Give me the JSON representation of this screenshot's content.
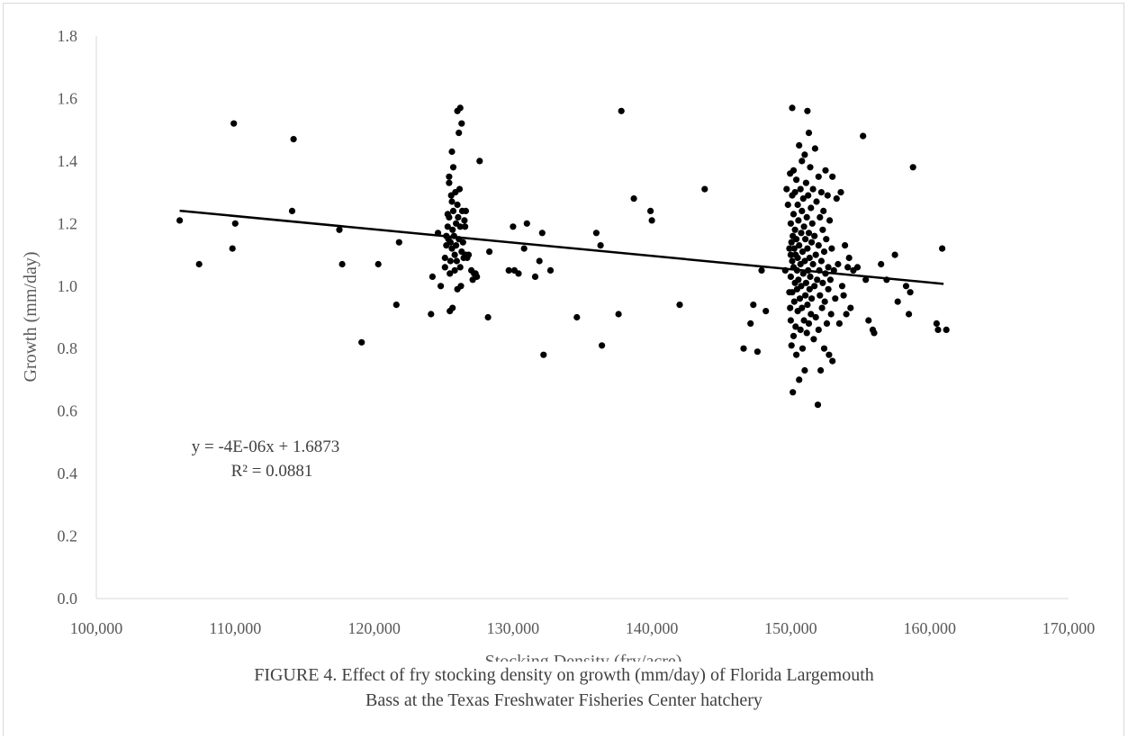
{
  "chart_data": {
    "type": "scatter",
    "xlabel": "Stocking Density (fry/acre)",
    "ylabel": "Growth (mm/day)",
    "xlim": [
      100000,
      170000
    ],
    "ylim": [
      0.0,
      1.8
    ],
    "x_ticks": [
      "100,000",
      "110,000",
      "120,000",
      "130,000",
      "140,000",
      "150,000",
      "160,000",
      "170,000"
    ],
    "y_ticks": [
      "0.0",
      "0.2",
      "0.4",
      "0.6",
      "0.8",
      "1.0",
      "1.2",
      "1.4",
      "1.6",
      "1.8"
    ],
    "grid": false,
    "point_color": "#000000",
    "trendline": {
      "equation": "y = -4E-06x + 1.6873",
      "r_squared": "R² = 0.0881",
      "x_range": [
        106000,
        161000
      ],
      "y_range": [
        1.241,
        1.007
      ]
    },
    "points": [
      [
        106000,
        1.21
      ],
      [
        107400,
        1.07
      ],
      [
        109800,
        1.12
      ],
      [
        109900,
        1.52
      ],
      [
        110000,
        1.2
      ],
      [
        114100,
        1.24
      ],
      [
        114200,
        1.47
      ],
      [
        117500,
        1.18
      ],
      [
        117700,
        1.07
      ],
      [
        119100,
        0.82
      ],
      [
        120300,
        1.07
      ],
      [
        121600,
        0.94
      ],
      [
        121800,
        1.14
      ],
      [
        124100,
        0.91
      ],
      [
        124200,
        1.03
      ],
      [
        124600,
        1.17
      ],
      [
        124800,
        1.0
      ],
      [
        125100,
        1.06
      ],
      [
        125100,
        1.09
      ],
      [
        125200,
        1.13
      ],
      [
        125200,
        1.16
      ],
      [
        125300,
        1.23
      ],
      [
        125300,
        1.19
      ],
      [
        125350,
        1.15
      ],
      [
        125400,
        1.35
      ],
      [
        125400,
        1.33
      ],
      [
        125400,
        1.22
      ],
      [
        125450,
        1.04
      ],
      [
        125450,
        0.92
      ],
      [
        125500,
        1.14
      ],
      [
        125500,
        1.08
      ],
      [
        125550,
        1.29
      ],
      [
        125600,
        1.43
      ],
      [
        125600,
        1.27
      ],
      [
        125600,
        1.12
      ],
      [
        125650,
        1.18
      ],
      [
        125650,
        0.93
      ],
      [
        125700,
        1.38
      ],
      [
        125700,
        1.24
      ],
      [
        125750,
        1.16
      ],
      [
        125800,
        1.1
      ],
      [
        125800,
        1.05
      ],
      [
        125850,
        1.3
      ],
      [
        125900,
        1.2
      ],
      [
        125900,
        1.13
      ],
      [
        125950,
        1.08
      ],
      [
        126000,
        1.56
      ],
      [
        126000,
        1.26
      ],
      [
        126000,
        0.99
      ],
      [
        126050,
        1.22
      ],
      [
        126100,
        1.15
      ],
      [
        126100,
        1.49
      ],
      [
        126150,
        1.31
      ],
      [
        126200,
        1.57
      ],
      [
        126200,
        1.19
      ],
      [
        126200,
        1.06
      ],
      [
        126250,
        1.0
      ],
      [
        126300,
        1.52
      ],
      [
        126300,
        1.11
      ],
      [
        126350,
        1.24
      ],
      [
        126400,
        1.14
      ],
      [
        126450,
        1.09
      ],
      [
        126500,
        1.21
      ],
      [
        126550,
        1.19
      ],
      [
        126600,
        1.24
      ],
      [
        126600,
        1.1
      ],
      [
        126700,
        1.09
      ],
      [
        126800,
        1.1
      ],
      [
        127000,
        1.05
      ],
      [
        127100,
        1.02
      ],
      [
        127200,
        1.04
      ],
      [
        127300,
        1.04
      ],
      [
        127400,
        1.03
      ],
      [
        127600,
        1.4
      ],
      [
        128200,
        0.9
      ],
      [
        128300,
        1.11
      ],
      [
        129700,
        1.05
      ],
      [
        130000,
        1.19
      ],
      [
        130100,
        1.05
      ],
      [
        130400,
        1.04
      ],
      [
        130800,
        1.12
      ],
      [
        131000,
        1.2
      ],
      [
        131600,
        1.03
      ],
      [
        131900,
        1.08
      ],
      [
        132100,
        1.17
      ],
      [
        132200,
        0.78
      ],
      [
        132700,
        1.05
      ],
      [
        134600,
        0.9
      ],
      [
        136000,
        1.17
      ],
      [
        136300,
        1.13
      ],
      [
        136400,
        0.81
      ],
      [
        137600,
        0.91
      ],
      [
        137800,
        1.56
      ],
      [
        138700,
        1.28
      ],
      [
        139900,
        1.24
      ],
      [
        140000,
        1.21
      ],
      [
        142000,
        0.94
      ],
      [
        143800,
        1.31
      ],
      [
        146600,
        0.8
      ],
      [
        147100,
        0.88
      ],
      [
        147300,
        0.94
      ],
      [
        147600,
        0.79
      ],
      [
        147900,
        1.05
      ],
      [
        148200,
        0.92
      ],
      [
        149600,
        1.05
      ],
      [
        149700,
        1.31
      ],
      [
        149800,
        1.26
      ],
      [
        149900,
        1.12
      ],
      [
        149900,
        0.98
      ],
      [
        149950,
        1.36
      ],
      [
        149950,
        0.93
      ],
      [
        150000,
        1.2
      ],
      [
        150000,
        1.1
      ],
      [
        150000,
        1.03
      ],
      [
        150000,
        0.89
      ],
      [
        150050,
        1.14
      ],
      [
        150050,
        0.81
      ],
      [
        150100,
        1.57
      ],
      [
        150100,
        1.29
      ],
      [
        150100,
        1.08
      ],
      [
        150100,
        0.98
      ],
      [
        150150,
        1.16
      ],
      [
        150150,
        0.66
      ],
      [
        150200,
        1.37
      ],
      [
        150200,
        1.23
      ],
      [
        150200,
        1.06
      ],
      [
        150200,
        0.84
      ],
      [
        150250,
        1.12
      ],
      [
        150250,
        0.95
      ],
      [
        150300,
        1.3
      ],
      [
        150300,
        1.18
      ],
      [
        150300,
        1.01
      ],
      [
        150350,
        1.1
      ],
      [
        150350,
        0.87
      ],
      [
        150400,
        1.34
      ],
      [
        150400,
        1.15
      ],
      [
        150400,
        0.78
      ],
      [
        150450,
        1.05
      ],
      [
        150450,
        0.99
      ],
      [
        150500,
        1.26
      ],
      [
        150500,
        1.09
      ],
      [
        150500,
        0.92
      ],
      [
        150550,
        1.21
      ],
      [
        150550,
        1.02
      ],
      [
        150600,
        1.45
      ],
      [
        150600,
        1.13
      ],
      [
        150600,
        0.7
      ],
      [
        150650,
        0.96
      ],
      [
        150700,
        1.31
      ],
      [
        150700,
        1.07
      ],
      [
        150700,
        0.86
      ],
      [
        150750,
        1.17
      ],
      [
        150750,
        1.0
      ],
      [
        150800,
        1.4
      ],
      [
        150800,
        1.24
      ],
      [
        150800,
        0.93
      ],
      [
        150850,
        1.11
      ],
      [
        150850,
        0.8
      ],
      [
        150900,
        1.28
      ],
      [
        150900,
        1.04
      ],
      [
        150950,
        1.19
      ],
      [
        150950,
        0.89
      ],
      [
        151000,
        1.42
      ],
      [
        151000,
        1.08
      ],
      [
        151000,
        0.73
      ],
      [
        151050,
        1.15
      ],
      [
        151050,
        0.97
      ],
      [
        151100,
        1.33
      ],
      [
        151100,
        1.01
      ],
      [
        151150,
        1.22
      ],
      [
        151150,
        0.85
      ],
      [
        151200,
        1.56
      ],
      [
        151200,
        1.12
      ],
      [
        151200,
        0.94
      ],
      [
        151250,
        1.29
      ],
      [
        151250,
        1.05
      ],
      [
        151300,
        1.49
      ],
      [
        151300,
        1.17
      ],
      [
        151300,
        0.88
      ],
      [
        151350,
        1.09
      ],
      [
        151350,
        0.99
      ],
      [
        151400,
        1.38
      ],
      [
        151400,
        1.03
      ],
      [
        151450,
        1.25
      ],
      [
        151450,
        0.91
      ],
      [
        151500,
        1.14
      ],
      [
        151500,
        0.96
      ],
      [
        151550,
        1.2
      ],
      [
        151600,
        1.31
      ],
      [
        151600,
        1.07
      ],
      [
        151650,
        0.83
      ],
      [
        151700,
        1.16
      ],
      [
        151700,
        1.0
      ],
      [
        151750,
        1.44
      ],
      [
        151800,
        1.1
      ],
      [
        151800,
        0.9
      ],
      [
        151850,
        1.27
      ],
      [
        151900,
        1.02
      ],
      [
        151950,
        0.62
      ],
      [
        152000,
        1.35
      ],
      [
        152000,
        1.13
      ],
      [
        152000,
        0.86
      ],
      [
        152050,
        1.05
      ],
      [
        152100,
        1.22
      ],
      [
        152100,
        0.97
      ],
      [
        152150,
        0.73
      ],
      [
        152200,
        1.3
      ],
      [
        152200,
        1.08
      ],
      [
        152250,
        0.93
      ],
      [
        152300,
        1.18
      ],
      [
        152300,
        1.01
      ],
      [
        152350,
        1.24
      ],
      [
        152400,
        1.11
      ],
      [
        152400,
        0.8
      ],
      [
        152450,
        0.95
      ],
      [
        152500,
        1.37
      ],
      [
        152500,
        1.04
      ],
      [
        152550,
        1.15
      ],
      [
        152600,
        0.88
      ],
      [
        152650,
        1.29
      ],
      [
        152700,
        1.06
      ],
      [
        152700,
        0.99
      ],
      [
        152750,
        0.78
      ],
      [
        152800,
        1.21
      ],
      [
        152850,
        1.02
      ],
      [
        152900,
        0.91
      ],
      [
        152950,
        1.12
      ],
      [
        153000,
        1.35
      ],
      [
        153000,
        0.76
      ],
      [
        153100,
        1.05
      ],
      [
        153200,
        0.96
      ],
      [
        153300,
        1.28
      ],
      [
        153400,
        1.07
      ],
      [
        153500,
        0.88
      ],
      [
        153600,
        1.3
      ],
      [
        153700,
        1.0
      ],
      [
        153800,
        0.97
      ],
      [
        153900,
        1.13
      ],
      [
        154000,
        0.91
      ],
      [
        154100,
        1.06
      ],
      [
        154200,
        1.09
      ],
      [
        154300,
        0.93
      ],
      [
        154500,
        1.05
      ],
      [
        154800,
        1.06
      ],
      [
        155200,
        1.48
      ],
      [
        155400,
        1.02
      ],
      [
        155600,
        0.89
      ],
      [
        155900,
        0.86
      ],
      [
        156000,
        0.85
      ],
      [
        156500,
        1.07
      ],
      [
        156900,
        1.02
      ],
      [
        157500,
        1.1
      ],
      [
        157700,
        0.95
      ],
      [
        158300,
        1.0
      ],
      [
        158500,
        0.91
      ],
      [
        158600,
        0.98
      ],
      [
        158800,
        1.38
      ],
      [
        160500,
        0.88
      ],
      [
        160600,
        0.86
      ],
      [
        160900,
        1.12
      ],
      [
        161200,
        0.86
      ]
    ]
  },
  "caption": {
    "line1": "FIGURE 4.   Effect of fry stocking density on growth (mm/day) of Florida Largemouth",
    "line2": "Bass at the Texas Freshwater Fisheries Center hatchery"
  }
}
